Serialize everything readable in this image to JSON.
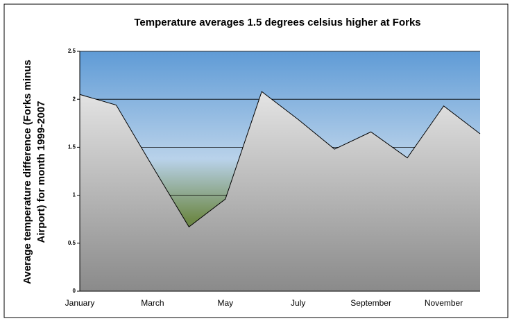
{
  "chart_data": {
    "type": "area",
    "title": "Temperature averages 1.5 degrees celsius higher at Forks",
    "ylabel": [
      "Average temperature difference (Forks minus",
      "Airport) for month 1999-2007"
    ],
    "categories": [
      "January",
      null,
      "March",
      null,
      "May",
      null,
      "July",
      null,
      "September",
      null,
      "November",
      null
    ],
    "values": [
      2.05,
      1.94,
      1.3,
      0.67,
      0.96,
      2.08,
      1.79,
      1.48,
      1.66,
      1.39,
      1.93,
      1.64
    ],
    "color": "#c8c8c8",
    "ylim": [
      0,
      2.5
    ],
    "yticks": [
      0,
      0.5,
      1,
      1.5,
      2,
      2.5
    ],
    "grid": true
  }
}
